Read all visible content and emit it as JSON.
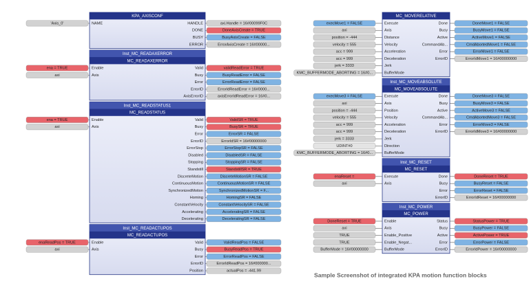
{
  "caption": "Sample Screenshot of integrated KPA motion function blocks",
  "blocks": [
    {
      "type": "KPA_AXISCONF",
      "inputs": [
        {
          "pin": "NAME",
          "var": "'Axis_0'",
          "color": "#d2d2d2"
        }
      ],
      "outputs": [
        {
          "pin": "HANDLE",
          "var": "axi.Handle = 16#00099F0C",
          "color": "#d2d2d2"
        },
        {
          "pin": "DONE",
          "var": "DoneAxisCreate = TRUE",
          "color": "#e8646a"
        },
        {
          "pin": "BUSY",
          "var": "BusyAxisCreate = FALSE",
          "color": "#7fb3e3"
        },
        {
          "pin": "ERROR",
          "var": "ErrorAxisCreate = 16#00000...",
          "color": "#d2d2d2"
        }
      ]
    },
    {
      "instance": "Inst_MC_READAXERROR",
      "type": "MC_READAXERROR",
      "inputs": [
        {
          "pin": "Enable",
          "var": "ena = TRUE",
          "color": "#e8646a"
        },
        {
          "pin": "Axis",
          "var": "axi",
          "color": "#d2d2d2"
        }
      ],
      "outputs": [
        {
          "pin": "Valid",
          "var": "validReadError = TRUE",
          "color": "#e8646a"
        },
        {
          "pin": "Busy",
          "var": "BusyReadError = FALSE",
          "color": "#7fb3e3"
        },
        {
          "pin": "Error",
          "var": "ErrorReadError = FALSE",
          "color": "#7fb3e3"
        },
        {
          "pin": "ErrorID",
          "var": "ErrorIdReadError = 16#0000...",
          "color": "#d2d2d2"
        },
        {
          "pin": "AxisErrorID",
          "var": "axisErrorIdReadError = 16#0...",
          "color": "#d2d2d2"
        }
      ]
    },
    {
      "instance": "Inst_MC_READSTATUS1",
      "type": "MC_READSTATUS",
      "inputs": [
        {
          "pin": "Enable",
          "var": "ena = TRUE",
          "color": "#e8646a"
        },
        {
          "pin": "Axis",
          "var": "axi",
          "color": "#d2d2d2"
        }
      ],
      "outputs": [
        {
          "pin": "Valid",
          "var": "ValidSR = TRUE",
          "color": "#e8646a"
        },
        {
          "pin": "Busy",
          "var": "BusySR = TRUE",
          "color": "#e8646a"
        },
        {
          "pin": "Error",
          "var": "ErrorSR = FALSE",
          "color": "#7fb3e3"
        },
        {
          "pin": "ErrorID",
          "var": "ErrorIdSR = 16#00000000",
          "color": "#d2d2d2"
        },
        {
          "pin": "ErrorStop",
          "var": "ErrorStopSR = FALSE",
          "color": "#7fb3e3"
        },
        {
          "pin": "Disabled",
          "var": "DisabledSR = FALSE",
          "color": "#7fb3e3"
        },
        {
          "pin": "Stopping",
          "var": "StoppingSR = FALSE",
          "color": "#7fb3e3"
        },
        {
          "pin": "Standstill",
          "var": "StandstillSR = TRUE",
          "color": "#e8646a"
        },
        {
          "pin": "DiscreteMotion",
          "var": "DiscreteMotionSR = FALSE",
          "color": "#7fb3e3"
        },
        {
          "pin": "ContinuousMotion",
          "var": "ContinuousMotionSR = FALSE",
          "color": "#7fb3e3"
        },
        {
          "pin": "SynchronizedMotion",
          "var": "SynchronizedMotionSR = F...",
          "color": "#7fb3e3"
        },
        {
          "pin": "Homing",
          "var": "HomingSR = FALSE",
          "color": "#7fb3e3"
        },
        {
          "pin": "ConstantVelocity",
          "var": "ConstantVelocitySR = FALSE",
          "color": "#7fb3e3"
        },
        {
          "pin": "Accelerating",
          "var": "AcceleratingSR = FALSE",
          "color": "#7fb3e3"
        },
        {
          "pin": "Decelerating",
          "var": "DeceleratingSR = FALSE",
          "color": "#7fb3e3"
        }
      ]
    },
    {
      "instance": "Inst_MC_READACTUPOS",
      "type": "MC_READACTUPOS",
      "inputs": [
        {
          "pin": "Enable",
          "var": "enaReadPos = TRUE",
          "color": "#e8646a"
        },
        {
          "pin": "Axis",
          "var": "axi",
          "color": "#d2d2d2"
        }
      ],
      "outputs": [
        {
          "pin": "Valid",
          "var": "ValidReadPos = FALSE",
          "color": "#7fb3e3"
        },
        {
          "pin": "Busy",
          "var": "BusyReadPos = TRUE",
          "color": "#e8646a"
        },
        {
          "pin": "Error",
          "var": "ErrorReadPos = FALSE",
          "color": "#7fb3e3"
        },
        {
          "pin": "ErrorID",
          "var": "ErrorIdReadPos = 16#000000...",
          "color": "#d2d2d2"
        },
        {
          "pin": "Position",
          "var": "actualPos = -441.99",
          "color": "#d2d2d2"
        }
      ]
    },
    {
      "type": "MC_MOVERELATIVE",
      "inputs": [
        {
          "pin": "Execute",
          "var": "execMove1 = FALSE",
          "color": "#7fb3e3"
        },
        {
          "pin": "Axis",
          "var": "axi",
          "color": "#d2d2d2"
        },
        {
          "pin": "Distance",
          "var": "position = -444",
          "color": "#d2d2d2"
        },
        {
          "pin": "Velocity",
          "var": "velocity = 555",
          "color": "#d2d2d2"
        },
        {
          "pin": "Acceleration",
          "var": "acc = 999",
          "color": "#d2d2d2"
        },
        {
          "pin": "Deceleration",
          "var": "acc = 999",
          "color": "#d2d2d2"
        },
        {
          "pin": "Jerk",
          "var": "jerk = 3333",
          "color": "#d2d2d2"
        },
        {
          "pin": "BufferMode",
          "var": "KMC_BUFFERMODE_ABORTING = 16#0...",
          "color": "#d2d2d2"
        }
      ],
      "outputs": [
        {
          "pin": "Done",
          "var": "DoneMove1 = FALSE",
          "color": "#7fb3e3"
        },
        {
          "pin": "Busy",
          "var": "BusyMove1 = FALSE",
          "color": "#7fb3e3"
        },
        {
          "pin": "Active",
          "var": "ActiveMove1 = FALSE",
          "color": "#7fb3e3"
        },
        {
          "pin": "CommandAb...",
          "var": "CmdAbortedMove1 = FALSE",
          "color": "#7fb3e3"
        },
        {
          "pin": "Error",
          "var": "ErrorMove1 = FALSE",
          "color": "#7fb3e3"
        },
        {
          "pin": "ErrorID",
          "var": "ErrorIdMove1 = 16#00000000",
          "color": "#d2d2d2"
        }
      ]
    },
    {
      "instance": "Inst_MC_MOVEABSOLUTE",
      "type": "MC_MOVEABSOLUTE",
      "inputs": [
        {
          "pin": "Execute",
          "var": "execMove3 = FALSE",
          "color": "#7fb3e3"
        },
        {
          "pin": "Axis",
          "var": "axi",
          "color": "#d2d2d2"
        },
        {
          "pin": "Position",
          "var": "position = -444",
          "color": "#d2d2d2"
        },
        {
          "pin": "Velocity",
          "var": "velocity = 555",
          "color": "#d2d2d2"
        },
        {
          "pin": "Acceleration",
          "var": "acc = 999",
          "color": "#d2d2d2"
        },
        {
          "pin": "Deceleration",
          "var": "acc = 999",
          "color": "#d2d2d2"
        },
        {
          "pin": "Jerk",
          "var": "jerk = 3333",
          "color": "#d2d2d2"
        },
        {
          "pin": "Direction",
          "var": "UDINT#0",
          "color": "#e4e4e4"
        },
        {
          "pin": "BufferMode",
          "var": "KMC_BUFFERMODE_ABORTING = 16#0...",
          "color": "#d2d2d2"
        }
      ],
      "outputs": [
        {
          "pin": "Done",
          "var": "DoneMove3 = FALSE",
          "color": "#7fb3e3"
        },
        {
          "pin": "Busy",
          "var": "BusyMove3 = FALSE",
          "color": "#7fb3e3"
        },
        {
          "pin": "Active",
          "var": "ActiveMove3 = FALSE",
          "color": "#7fb3e3"
        },
        {
          "pin": "CommandAb...",
          "var": "CmdAbortedMove3 = FALSE",
          "color": "#7fb3e3"
        },
        {
          "pin": "Error",
          "var": "ErrorMove3 = FALSE",
          "color": "#7fb3e3"
        },
        {
          "pin": "ErrorID",
          "var": "ErrorIdMove3 = 16#00000000",
          "color": "#d2d2d2"
        }
      ]
    },
    {
      "instance": "Inst_MC_RESET",
      "type": "MC_RESET",
      "inputs": [
        {
          "pin": "Execute",
          "var": "enaReset = ",
          "color": "#e8646a"
        },
        {
          "pin": "Axis",
          "var": "axi",
          "color": "#d2d2d2"
        }
      ],
      "outputs": [
        {
          "pin": "Done",
          "var": "DoneReset = TRUE",
          "color": "#e8646a"
        },
        {
          "pin": "Busy",
          "var": "BusyReset = FALSE",
          "color": "#7fb3e3"
        },
        {
          "pin": "Error",
          "var": "ErrorReset = FALSE",
          "color": "#7fb3e3"
        },
        {
          "pin": "ErrorID",
          "var": "ErrorIdReset = 16#00000000",
          "color": "#d2d2d2"
        }
      ]
    },
    {
      "instance": "Inst_MC_POWER",
      "type": "MC_POWER",
      "inputs": [
        {
          "pin": "Enable",
          "var": "DoneReset = TRUE",
          "color": "#e8646a"
        },
        {
          "pin": "Axis",
          "var": "axi",
          "color": "#d2d2d2"
        },
        {
          "pin": "Enable_Positive",
          "var": "TRUE",
          "color": "#d2d2d2"
        },
        {
          "pin": "Enable_Negat...",
          "var": "TRUE",
          "color": "#d2d2d2"
        },
        {
          "pin": "BufferMode",
          "var": "BufferMode = 16#00000000",
          "color": "#d2d2d2"
        }
      ],
      "outputs": [
        {
          "pin": "Status",
          "var": "StatusPower = TRUE",
          "color": "#e8646a"
        },
        {
          "pin": "Busy",
          "var": "BusyPower = FALSE",
          "color": "#7fb3e3"
        },
        {
          "pin": "Active",
          "var": "ActivePower = TRUE",
          "color": "#e8646a"
        },
        {
          "pin": "Error",
          "var": "ErrorPower = FALSE",
          "color": "#7fb3e3"
        },
        {
          "pin": "ErrorID",
          "var": "ErrorIdPower = 16#00000000",
          "color": "#d2d2d2"
        }
      ]
    }
  ]
}
